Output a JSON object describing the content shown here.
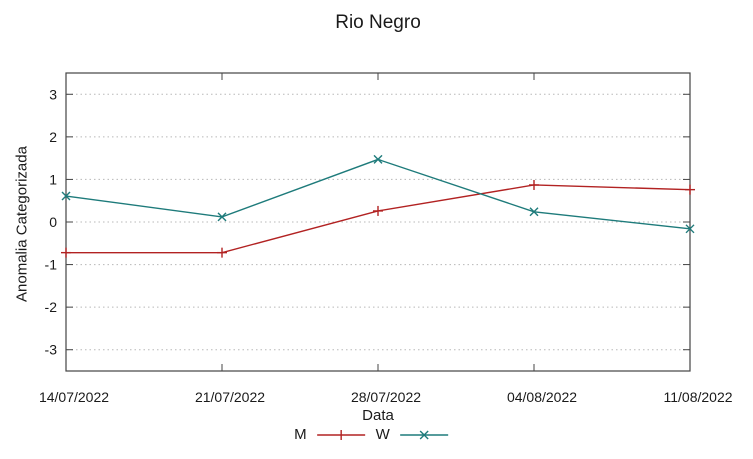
{
  "chart_data": {
    "type": "line",
    "title": "Rio Negro",
    "xlabel": "Data",
    "ylabel": "Anomalia Categorizada",
    "x": [
      "14/07/2022",
      "21/07/2022",
      "28/07/2022",
      "04/08/2022",
      "11/08/2022"
    ],
    "yticks": [
      -3,
      -2,
      -1,
      0,
      1,
      2,
      3
    ],
    "ylim": [
      -3.5,
      3.5
    ],
    "grid": "horizontal-dotted",
    "legend_position": "bottom-center",
    "series": [
      {
        "name": "M",
        "color": "#b22222",
        "marker": "plus",
        "values": [
          -0.72,
          -0.72,
          0.26,
          0.87,
          0.76
        ]
      },
      {
        "name": "W",
        "color": "#1e7b7b",
        "marker": "cross",
        "values": [
          0.61,
          0.12,
          1.47,
          0.24,
          -0.16
        ]
      }
    ],
    "axis_color": "#444444",
    "grid_color": "#b8b8b8",
    "text_color": "#1a1a1a"
  }
}
